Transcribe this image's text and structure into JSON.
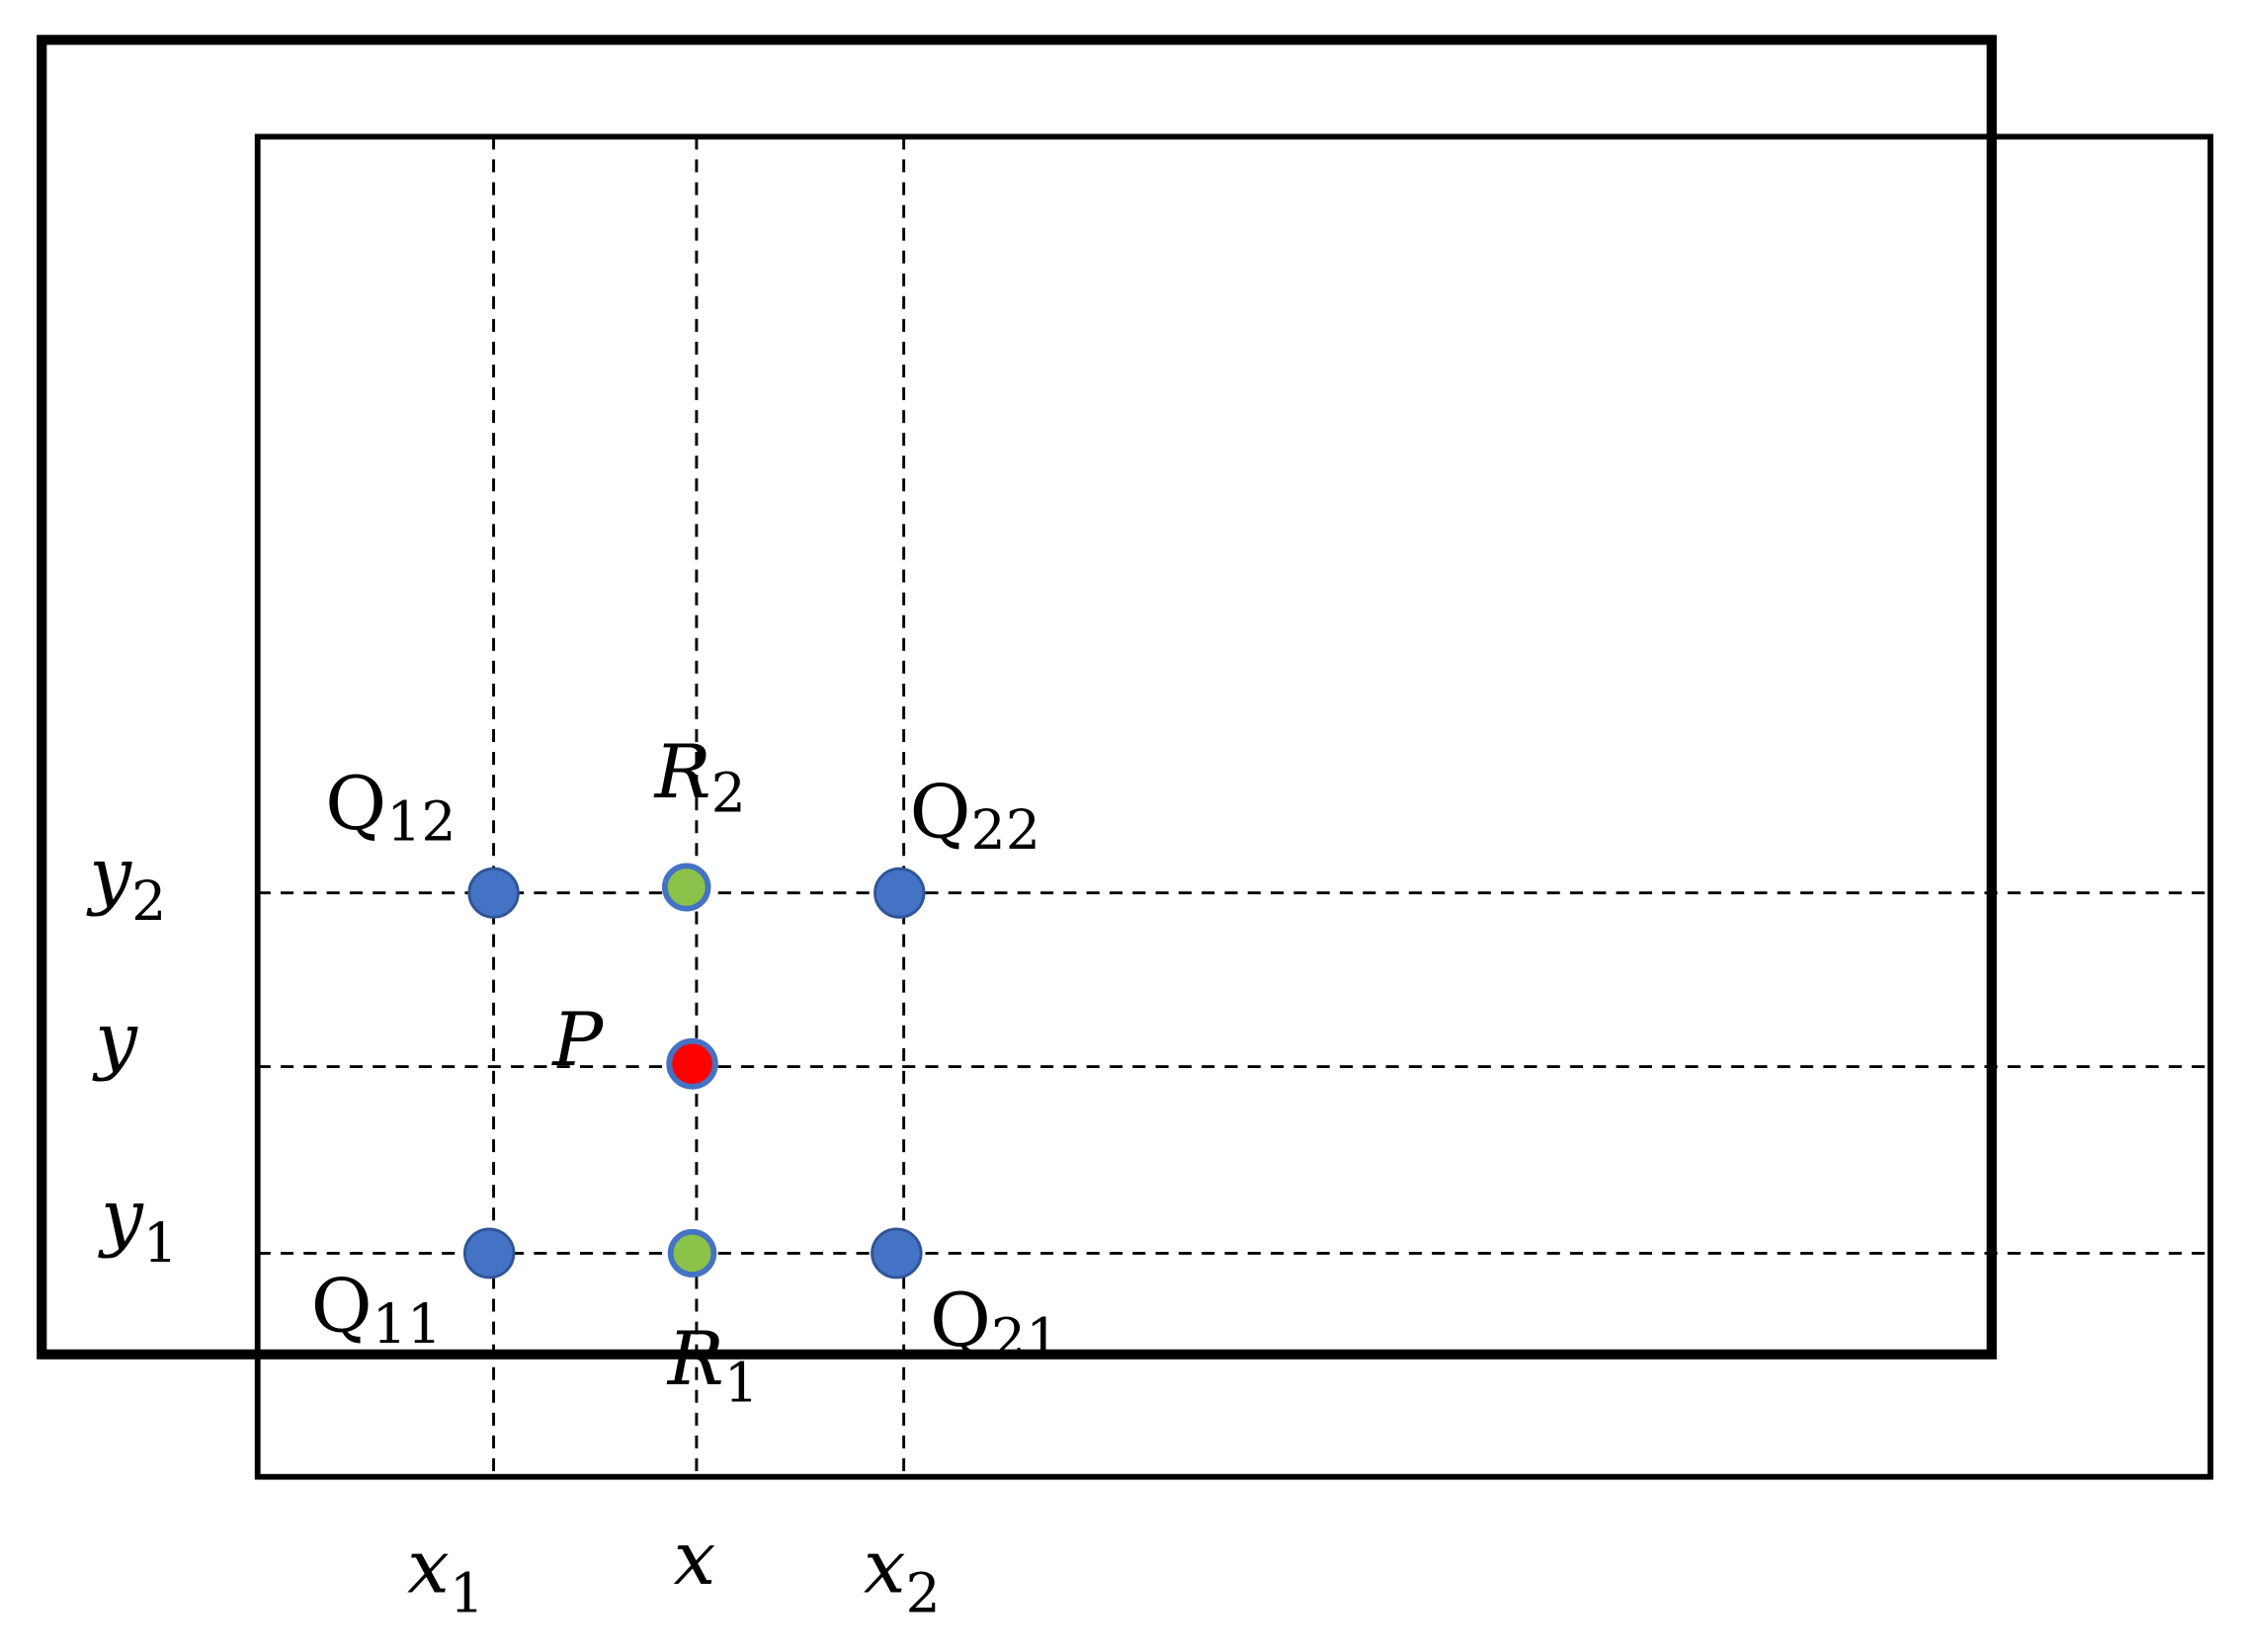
{
  "points": [
    {
      "base": "Q",
      "sub": "12"
    },
    {
      "base": "R",
      "sub": "2"
    },
    {
      "base": "Q",
      "sub": "22"
    },
    {
      "base": "P"
    },
    {
      "base": "Q",
      "sub": "11"
    },
    {
      "base": "R",
      "sub": "1"
    },
    {
      "base": "Q",
      "sub": "21"
    }
  ],
  "x_axis": [
    {
      "base": "x",
      "sub": "1"
    },
    {
      "base": "x"
    },
    {
      "base": "x",
      "sub": "2"
    }
  ],
  "y_axis": [
    {
      "base": "y",
      "sub": "2"
    },
    {
      "base": "y"
    },
    {
      "base": "y",
      "sub": "1"
    }
  ]
}
